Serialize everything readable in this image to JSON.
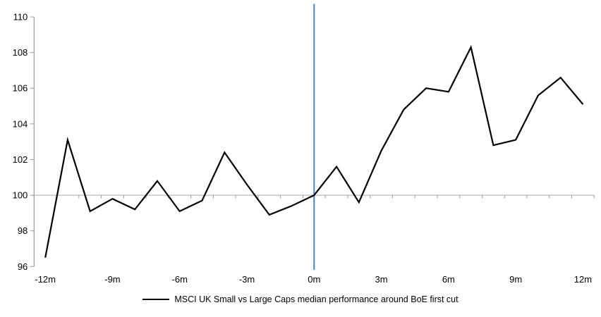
{
  "chart_data": {
    "type": "line",
    "title": "",
    "x": [
      -12,
      -11,
      -10,
      -9,
      -8,
      -7,
      -6,
      -5,
      -4,
      -3,
      -2,
      -1,
      0,
      1,
      2,
      3,
      4,
      5,
      6,
      7,
      8,
      9,
      10,
      11,
      12
    ],
    "series": [
      {
        "name": "MSCI UK Small vs Large Caps median performance around BoE first cut",
        "color": "#000000",
        "values": [
          96.5,
          103.1,
          99.1,
          99.8,
          99.2,
          100.8,
          99.1,
          99.7,
          102.4,
          100.6,
          98.9,
          99.4,
          100.0,
          101.6,
          99.6,
          102.5,
          104.8,
          106.0,
          105.8,
          108.3,
          102.8,
          103.1,
          105.6,
          106.6,
          105.1
        ]
      }
    ],
    "ylim": [
      96,
      110
    ],
    "y_ticks": [
      "96",
      "98",
      "100",
      "102",
      "104",
      "106",
      "108",
      "110"
    ],
    "y_tick_values": [
      96,
      98,
      100,
      102,
      104,
      106,
      108,
      110
    ],
    "x_tick_values": [
      -12,
      -9,
      -6,
      -3,
      0,
      3,
      6,
      9,
      12
    ],
    "x_tick_labels": [
      "-12m",
      "-9m",
      "-6m",
      "-3m",
      "0m",
      "3m",
      "6m",
      "9m",
      "12m"
    ],
    "baseline": {
      "value": 100,
      "color": "#ABABAB"
    },
    "event_line": {
      "x": 0,
      "color": "#4F81BD"
    },
    "grid": "off",
    "legend_position": "bottom",
    "axis_color": "#9B9B9B",
    "text_color": "#000000"
  }
}
